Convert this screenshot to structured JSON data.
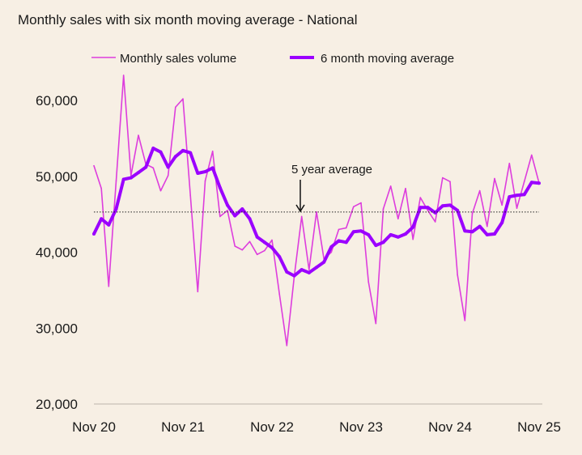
{
  "chart_data": {
    "type": "line",
    "title": "Monthly sales with six month moving average - National",
    "xlabel": "",
    "ylabel": "",
    "x_ticks": [
      "Nov 20",
      "Nov 21",
      "Nov 22",
      "Nov 23",
      "Nov 24",
      "Nov 25"
    ],
    "y_ticks": [
      "20,000",
      "30,000",
      "40,000",
      "50,000",
      "60,000"
    ],
    "ylim": [
      20000,
      65000
    ],
    "legend_position": "top",
    "grid": false,
    "x": [
      "Nov 20",
      "Dec 20",
      "Jan 21",
      "Feb 21",
      "Mar 21",
      "Apr 21",
      "May 21",
      "Jun 21",
      "Jul 21",
      "Aug 21",
      "Sep 21",
      "Oct 21",
      "Nov 21",
      "Dec 21",
      "Jan 22",
      "Feb 22",
      "Mar 22",
      "Apr 22",
      "May 22",
      "Jun 22",
      "Jul 22",
      "Aug 22",
      "Sep 22",
      "Oct 22",
      "Nov 22",
      "Dec 22",
      "Jan 23",
      "Feb 23",
      "Mar 23",
      "Apr 23",
      "May 23",
      "Jun 23",
      "Jul 23",
      "Aug 23",
      "Sep 23",
      "Oct 23",
      "Nov 23",
      "Dec 23",
      "Jan 24",
      "Feb 24",
      "Mar 24",
      "Apr 24",
      "May 24",
      "Jun 24",
      "Jul 24",
      "Aug 24",
      "Sep 24",
      "Oct 24",
      "Nov 24",
      "Dec 24",
      "Jan 25",
      "Feb 25",
      "Mar 25",
      "Apr 25",
      "May 25",
      "Jun 25",
      "Jul 25",
      "Aug 25",
      "Sep 25",
      "Oct 25",
      "Nov 25"
    ],
    "series": [
      {
        "name": "Monthly sales volume",
        "color": "#dd3ddd",
        "values": [
          51400,
          48400,
          35500,
          49400,
          63300,
          50100,
          55400,
          51600,
          51100,
          48100,
          50100,
          59100,
          60200,
          47500,
          34800,
          49400,
          53300,
          44700,
          45500,
          40800,
          40300,
          41400,
          39700,
          40200,
          41600,
          34500,
          27700,
          36800,
          44700,
          37700,
          45300,
          39100,
          40000,
          43000,
          43200,
          46000,
          46500,
          36100,
          30600,
          45700,
          48700,
          44400,
          48400,
          41700,
          47200,
          45500,
          44000,
          49800,
          49300,
          37000,
          31000,
          45100,
          48100,
          43400,
          49700,
          46200,
          51700,
          45800,
          49300,
          52800,
          49100
        ]
      },
      {
        "name": "6 month moving average",
        "color": "#9b00ff",
        "values": [
          42400,
          44400,
          43600,
          45700,
          49600,
          49800,
          50500,
          51200,
          53700,
          53200,
          51200,
          52600,
          53400,
          53100,
          50400,
          50600,
          51100,
          48500,
          46200,
          44800,
          45700,
          44400,
          42000,
          41300,
          40600,
          39400,
          37400,
          36900,
          37700,
          37300,
          38000,
          38700,
          40700,
          41500,
          41300,
          42700,
          42800,
          42300,
          40900,
          41300,
          42300,
          42000,
          42400,
          43300,
          45900,
          45900,
          45200,
          46100,
          46200,
          45500,
          42800,
          42700,
          43400,
          42300,
          42400,
          43900,
          47300,
          47500,
          47600,
          49200,
          49100
        ]
      }
    ],
    "reference_line": {
      "label": "5 year average",
      "value": 45300
    }
  }
}
